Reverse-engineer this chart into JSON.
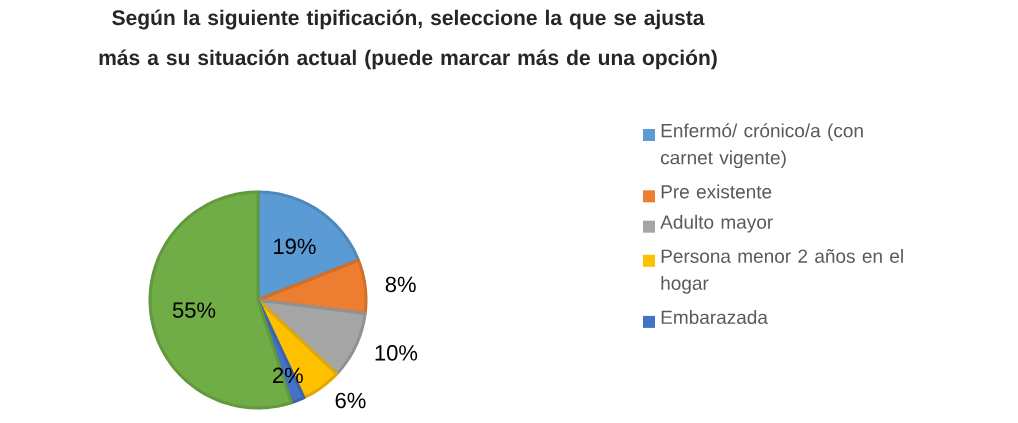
{
  "chart_data": {
    "type": "pie",
    "title": "Según la siguiente tipificación, seleccione la que se ajusta más a su situación actual (puede marcar más de una opción)",
    "categories": [
      "Enfermó/ crónico/a (con carnet vigente)",
      "Pre existente",
      "Adulto mayor",
      "Persona menor 2 años en el hogar",
      "Embarazada",
      null
    ],
    "values": [
      19,
      8,
      10,
      6,
      2,
      55
    ],
    "value_labels": [
      "19%",
      "8%",
      "10%",
      "6%",
      "2%",
      "55%"
    ],
    "colors": [
      "#5b9bd5",
      "#ed7d31",
      "#a5a5a5",
      "#ffc000",
      "#4472c4",
      "#70ad47"
    ],
    "legend": "right"
  }
}
